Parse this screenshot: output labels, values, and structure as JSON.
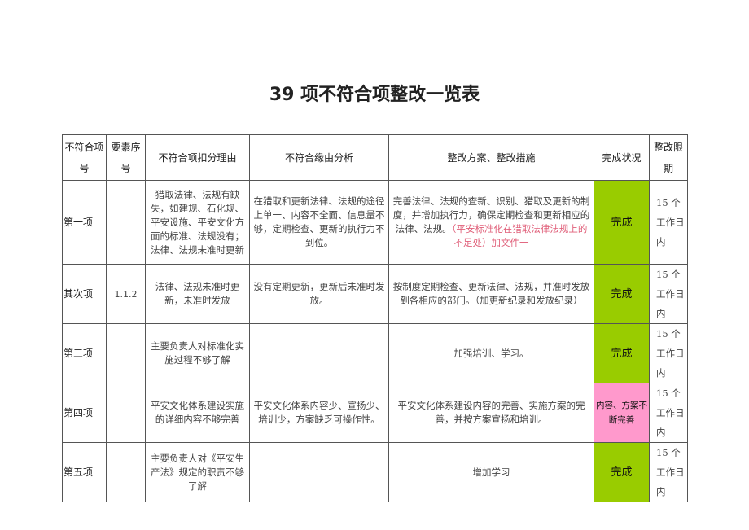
{
  "title": "39 项不符合项整改一览表",
  "colors": {
    "complete": "#99cc00",
    "in_progress": "#ff99cc",
    "note": "#e0607a"
  },
  "headers": [
    "不符合项号",
    "要素序号",
    "不符合项扣分理由",
    "不符合缘由分析",
    "整改方案、整改措施",
    "完成状况",
    "整改限期"
  ],
  "rows": [
    {
      "no": "第一项",
      "code": "",
      "reason": "猎取法律、法规有缺失，如建规、石化规、平安设施、平安文化方面的标准、法规没有；法律、法规未准时更新",
      "analysis": "在猎取和更新法律、法规的途径上单一、内容不全面、信息量不够，定期检查、更新的执行力不到位。",
      "measure": "完善法律、法规的查新、识别、猎取及更新的制度，并增加执行力，确保定期检查和更新相应的法律、法规。",
      "measure_note": "（平安标准化在猎取法律法规上的不足处）加文件一",
      "status": "完成",
      "deadline": "15 个工作日内"
    },
    {
      "no": "其次项",
      "code": "1.1.2",
      "reason": "法律、法规未准时更新，未准时发放",
      "analysis": "没有定期更新，更新后未准时发放。",
      "measure": "按制度定期检查、更新法律、法规，并准时发放到各相应的部门。（加更新纪录和发放纪录）",
      "measure_note": "",
      "status": "完成",
      "deadline": "15 个工作日内"
    },
    {
      "no": "第三项",
      "code": "",
      "reason": "主要负责人对标准化实施过程不够了解",
      "analysis": "",
      "measure": "加强培训、学习。",
      "measure_note": "",
      "status": "完成",
      "deadline": "15 个工作日内"
    },
    {
      "no": "第四项",
      "code": "",
      "reason": "平安文化体系建设实施的详细内容不够完善",
      "analysis": "平安文化体系内容少、宣扬少、培训少，方案缺乏可操作性。",
      "measure": "平安文化体系建设内容的完善、实施方案的完善，并按方案宣扬和培训。",
      "measure_note": "",
      "status": "内容、方案不断完善",
      "deadline": "15 个工作日内"
    },
    {
      "no": "第五项",
      "code": "",
      "reason": "主要负责人对《平安生产法》规定的职责不够了解",
      "analysis": "",
      "measure": "增加学习",
      "measure_note": "",
      "status": "完成",
      "deadline": "15 个工作日内"
    }
  ]
}
